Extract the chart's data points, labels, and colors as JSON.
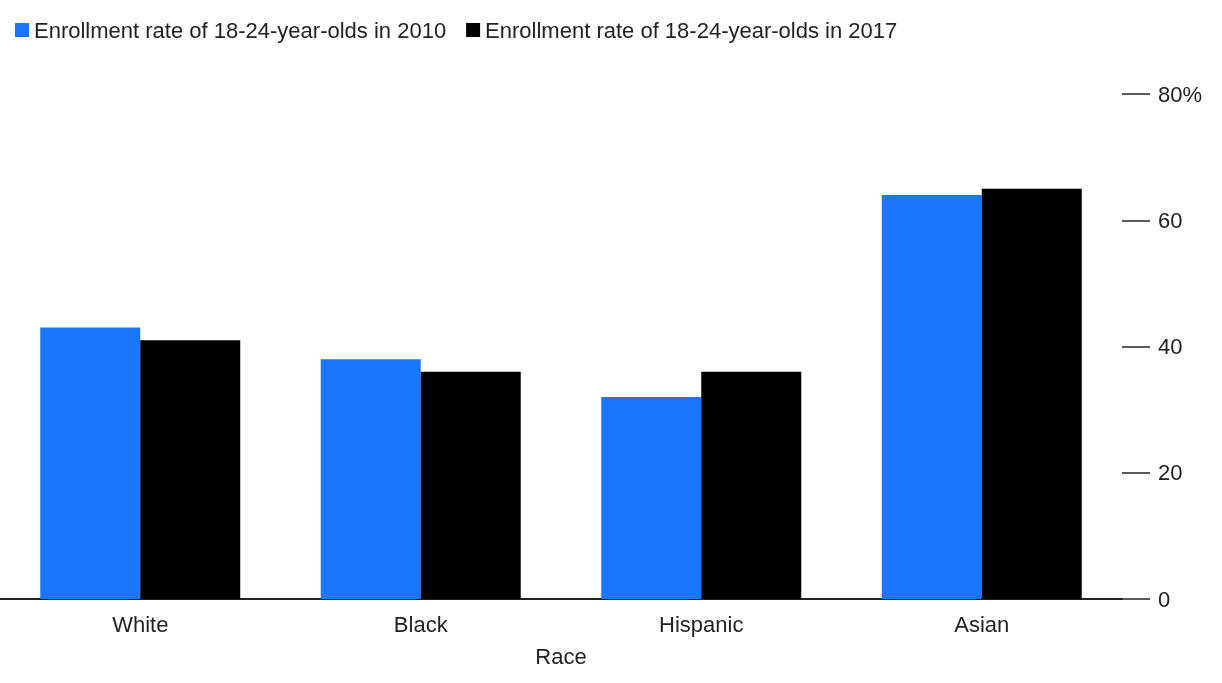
{
  "chart_data": {
    "type": "bar",
    "xlabel": "Race",
    "categories": [
      "White",
      "Black",
      "Hispanic",
      "Asian"
    ],
    "series": [
      {
        "name": "Enrollment rate of 18-24-year-olds in 2010",
        "color": "#1a75ff",
        "values": [
          43,
          38,
          32,
          64
        ]
      },
      {
        "name": "Enrollment rate of 18-24-year-olds in 2017",
        "color": "#000000",
        "values": [
          41,
          36,
          36,
          65
        ]
      }
    ],
    "ylim": [
      0,
      80
    ],
    "yticks": [
      0,
      20,
      40,
      60,
      {
        "value": 80,
        "label": "80%"
      }
    ],
    "grid": false,
    "legend": "top left"
  }
}
